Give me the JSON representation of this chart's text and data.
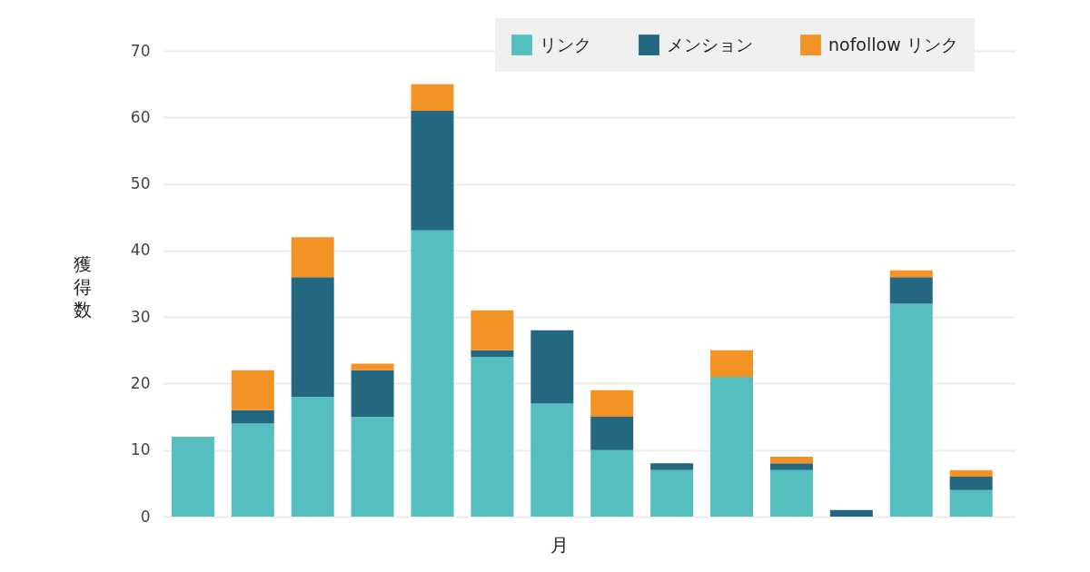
{
  "chart_data": {
    "type": "bar",
    "stacked": true,
    "xlabel": "月",
    "ylabel": "獲得数",
    "categories": [
      null,
      null,
      null,
      null,
      null,
      null,
      null,
      null,
      null,
      null,
      null,
      null,
      null,
      null
    ],
    "series": [
      {
        "name": "リンク",
        "color": "#55bfc0",
        "values": [
          12,
          14,
          18,
          15,
          43,
          24,
          17,
          10,
          7,
          21,
          7,
          0,
          32,
          4
        ]
      },
      {
        "name": "メンション",
        "color": "#236880",
        "values": [
          0,
          2,
          18,
          7,
          18,
          1,
          11,
          5,
          1,
          0,
          1,
          1,
          4,
          2
        ]
      },
      {
        "name": "nofollow リンク",
        "color": "#f39325",
        "values": [
          0,
          6,
          6,
          1,
          4,
          6,
          0,
          4,
          0,
          4,
          1,
          0,
          1,
          1
        ]
      }
    ],
    "ylim": [
      0,
      70
    ],
    "yticks": [
      0,
      10,
      20,
      30,
      40,
      50,
      60,
      70
    ],
    "grid": "y",
    "legend": "top right",
    "tick_labels": "y"
  }
}
